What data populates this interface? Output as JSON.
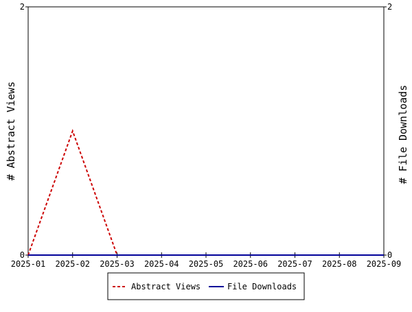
{
  "chart_data": {
    "type": "line",
    "title": "",
    "x": [
      "2025-01",
      "2025-02",
      "2025-03",
      "2025-04",
      "2025-05",
      "2025-06",
      "2025-07",
      "2025-08",
      "2025-09"
    ],
    "series": [
      {
        "name": "Abstract Views",
        "axis": "left",
        "color": "#cc0000",
        "dash": "dashed",
        "values": [
          0,
          1,
          0,
          0,
          0,
          0,
          0,
          0,
          0
        ]
      },
      {
        "name": "File Downloads",
        "axis": "right",
        "color": "#000099",
        "dash": "solid",
        "values": [
          0,
          0,
          0,
          0,
          0,
          0,
          0,
          0,
          0
        ]
      }
    ],
    "ylabel_left": "# Abstract Views",
    "ylabel_right": "# File Downloads",
    "ylim_left": [
      0,
      2
    ],
    "ylim_right": [
      0,
      2
    ],
    "yticks_left": [
      "0",
      "2"
    ],
    "yticks_right": [
      "0",
      "2"
    ],
    "grid": false,
    "legend": "bottom-center"
  }
}
